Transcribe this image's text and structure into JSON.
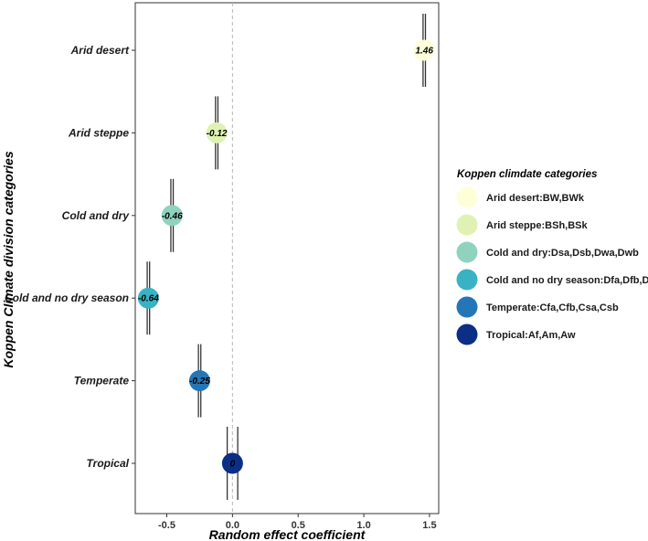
{
  "chart_data": {
    "type": "scatter",
    "xlabel": "Random effect coefficient",
    "ylabel": "Koppen Climate division categories",
    "xlim": [
      -0.74,
      1.57
    ],
    "xticks": [
      -0.5,
      0.0,
      0.5,
      1.0,
      1.5
    ],
    "xtick_labels": [
      "-0.5",
      "0.0",
      "0.5",
      "1.0",
      "1.5"
    ],
    "reference_line_x": 0,
    "categories": [
      "Arid desert",
      "Arid steppe",
      "Cold and dry",
      "Cold and no dry season",
      "Temperate",
      "Tropical"
    ],
    "values": [
      1.46,
      -0.12,
      -0.46,
      -0.64,
      -0.25,
      0
    ],
    "value_labels": [
      "1.46",
      "-0.12",
      "-0.46",
      "-0.64",
      "-0.25",
      "0"
    ],
    "error_low": [
      1.45,
      -0.12,
      -0.46,
      -0.64,
      -0.25,
      -0.04
    ],
    "error_high": [
      1.47,
      -0.12,
      -0.46,
      -0.64,
      -0.25,
      0.04
    ],
    "colors": [
      "#fefed8",
      "#dff2b4",
      "#8fd3be",
      "#3ab2c6",
      "#2476b6",
      "#0b2e86"
    ],
    "legend": {
      "title": "Koppen climdate categories",
      "position": "right",
      "entries": [
        "Arid desert:BW,BWk",
        "Arid steppe:BSh,BSk",
        "Cold and dry:Dsa,Dsb,Dwa,Dwb",
        "Cold and no dry season:Dfa,Dfb,Dfc",
        "Temperate:Cfa,Cfb,Csa,Csb",
        "Tropical:Af,Am,Aw"
      ]
    }
  }
}
